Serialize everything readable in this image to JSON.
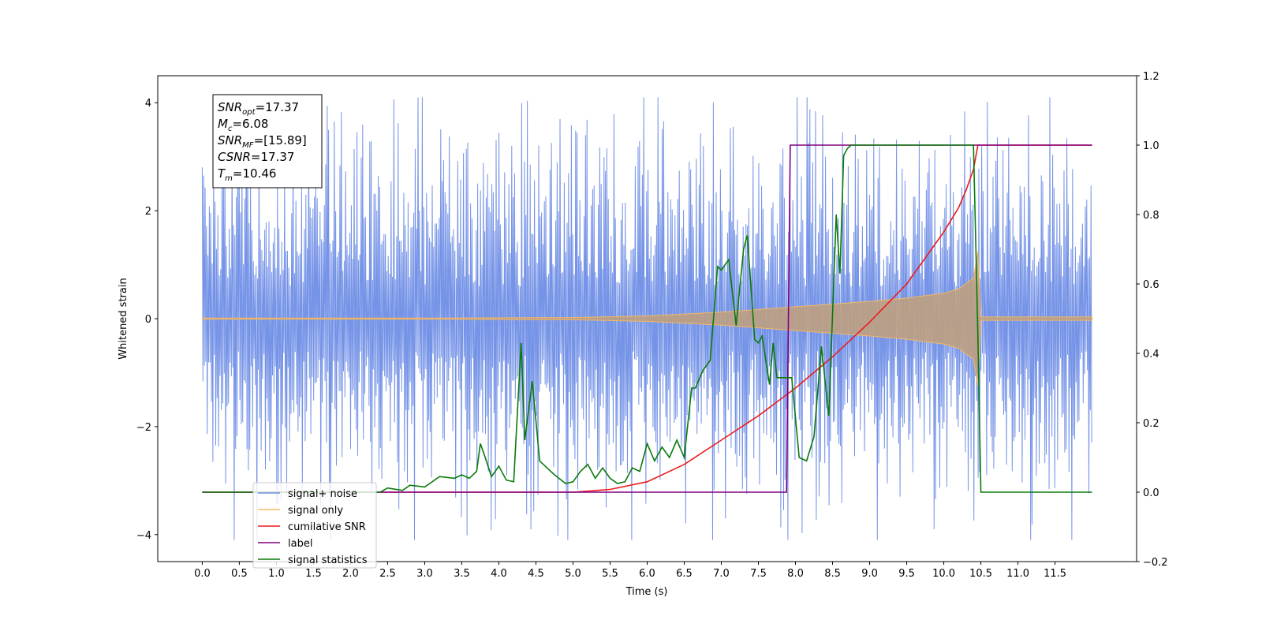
{
  "chart_data": {
    "type": "line",
    "xlabel": "Time (s)",
    "ylabel": "Whitened strain",
    "ylabel_right": "",
    "xlim": [
      -0.6,
      12.6
    ],
    "ylim": [
      -4.5,
      4.5
    ],
    "ylim_right": [
      -0.2,
      1.2
    ],
    "x_ticks": [
      0.0,
      0.5,
      1.0,
      1.5,
      2.0,
      2.5,
      3.0,
      3.5,
      4.0,
      4.5,
      5.0,
      5.5,
      6.0,
      6.5,
      7.0,
      7.5,
      8.0,
      8.5,
      9.0,
      9.5,
      10.0,
      10.5,
      11.0,
      11.5
    ],
    "x_tick_labels": [
      "0.0",
      "0.5",
      "1.0",
      "1.5",
      "2.0",
      "2.5",
      "3.0",
      "3.5",
      "4.0",
      "4.5",
      "5.0",
      "5.5",
      "6.0",
      "6.5",
      "7.0",
      "7.5",
      "8.0",
      "8.5",
      "9.0",
      "9.5",
      "10.0",
      "10.5",
      "11.0",
      "11.5"
    ],
    "y_ticks": [
      -4,
      -2,
      0,
      2,
      4
    ],
    "y_tick_labels": [
      "−4",
      "−2",
      "0",
      "2",
      "4"
    ],
    "y_right_ticks": [
      -0.2,
      0.0,
      0.2,
      0.4,
      0.6,
      0.8,
      1.0,
      1.2
    ],
    "y_right_tick_labels": [
      "−0.2",
      "0.0",
      "0.2",
      "0.4",
      "0.6",
      "0.8",
      "1.0",
      "1.2"
    ],
    "grid": false,
    "legend_position": "bottom-left",
    "annotation": {
      "lines": [
        {
          "main": "SNR",
          "sub": "opt",
          "rest": "=17.37"
        },
        {
          "main": "M",
          "sub": "c",
          "rest": "=6.08"
        },
        {
          "main": "SNR",
          "sub": "MF",
          "rest": "=[15.89]"
        },
        {
          "main": "CSNR",
          "sub": "",
          "rest": "=17.37"
        },
        {
          "main": "T",
          "sub": "m",
          "rest": "=10.46"
        }
      ]
    },
    "series": [
      {
        "name": "signal+ noise",
        "axis": "left",
        "color": "#6f8ee6",
        "kind": "noisy_envelope",
        "x_range": [
          0.0,
          12.0
        ],
        "typical_amplitude": 1.9,
        "peak_max": 4.1,
        "peak_min": -4.1,
        "seed": 7
      },
      {
        "name": "signal only",
        "axis": "left",
        "color": "#f5b862",
        "kind": "chirp_envelope",
        "envelope": {
          "x": [
            0.0,
            3.0,
            5.0,
            6.0,
            7.0,
            7.5,
            8.0,
            8.5,
            9.0,
            9.5,
            10.0,
            10.2,
            10.4,
            10.46,
            10.5,
            12.0
          ],
          "amp": [
            0.01,
            0.01,
            0.02,
            0.05,
            0.12,
            0.17,
            0.22,
            0.27,
            0.32,
            0.38,
            0.47,
            0.55,
            0.75,
            1.25,
            0.03,
            0.03
          ]
        }
      },
      {
        "name": "cumilative SNR",
        "axis": "right",
        "color": "#ee1c1c",
        "x": [
          0.0,
          5.0,
          5.5,
          6.0,
          6.5,
          7.0,
          7.5,
          8.0,
          8.5,
          9.0,
          9.5,
          10.0,
          10.2,
          10.3,
          10.4,
          10.46,
          12.0
        ],
        "values": [
          0.0,
          0.0,
          0.008,
          0.03,
          0.08,
          0.15,
          0.22,
          0.3,
          0.39,
          0.49,
          0.6,
          0.75,
          0.82,
          0.87,
          0.93,
          1.0,
          1.0
        ]
      },
      {
        "name": "label",
        "axis": "right",
        "color": "#800080",
        "x": [
          0.0,
          7.88,
          7.93,
          10.46,
          12.0
        ],
        "values": [
          0.0,
          0.0,
          1.0,
          1.0,
          1.0
        ]
      },
      {
        "name": "signal statistics",
        "axis": "right",
        "color": "#0a7a0a",
        "x": [
          0.0,
          2.4,
          2.5,
          2.7,
          2.8,
          3.0,
          3.2,
          3.4,
          3.5,
          3.6,
          3.7,
          3.75,
          3.8,
          3.9,
          4.0,
          4.1,
          4.2,
          4.3,
          4.35,
          4.45,
          4.55,
          4.65,
          4.75,
          4.9,
          5.0,
          5.1,
          5.2,
          5.3,
          5.4,
          5.5,
          5.6,
          5.7,
          5.8,
          5.9,
          6.0,
          6.1,
          6.2,
          6.3,
          6.4,
          6.5,
          6.6,
          6.65,
          6.75,
          6.85,
          6.95,
          7.0,
          7.1,
          7.2,
          7.3,
          7.35,
          7.45,
          7.5,
          7.55,
          7.65,
          7.7,
          7.75,
          7.85,
          7.95,
          8.05,
          8.15,
          8.25,
          8.35,
          8.45,
          8.55,
          8.6,
          8.65,
          8.7,
          8.75,
          8.8,
          8.9,
          9.0,
          9.5,
          10.0,
          10.4,
          10.46,
          10.5,
          12.0
        ],
        "values": [
          0.0,
          0.0,
          0.012,
          0.005,
          0.02,
          0.015,
          0.045,
          0.04,
          0.05,
          0.04,
          0.06,
          0.14,
          0.11,
          0.045,
          0.075,
          0.035,
          0.03,
          0.43,
          0.15,
          0.32,
          0.09,
          0.07,
          0.05,
          0.025,
          0.03,
          0.06,
          0.08,
          0.04,
          0.07,
          0.04,
          0.025,
          0.03,
          0.07,
          0.06,
          0.14,
          0.09,
          0.13,
          0.1,
          0.15,
          0.1,
          0.3,
          0.3,
          0.35,
          0.38,
          0.65,
          0.64,
          0.67,
          0.48,
          0.7,
          0.74,
          0.44,
          0.43,
          0.45,
          0.31,
          0.43,
          0.33,
          0.33,
          0.33,
          0.1,
          0.09,
          0.16,
          0.42,
          0.22,
          0.8,
          0.63,
          0.97,
          0.99,
          1.0,
          1.0,
          1.0,
          1.0,
          1.0,
          1.0,
          1.0,
          0.45,
          0.0,
          0.0
        ]
      }
    ]
  }
}
